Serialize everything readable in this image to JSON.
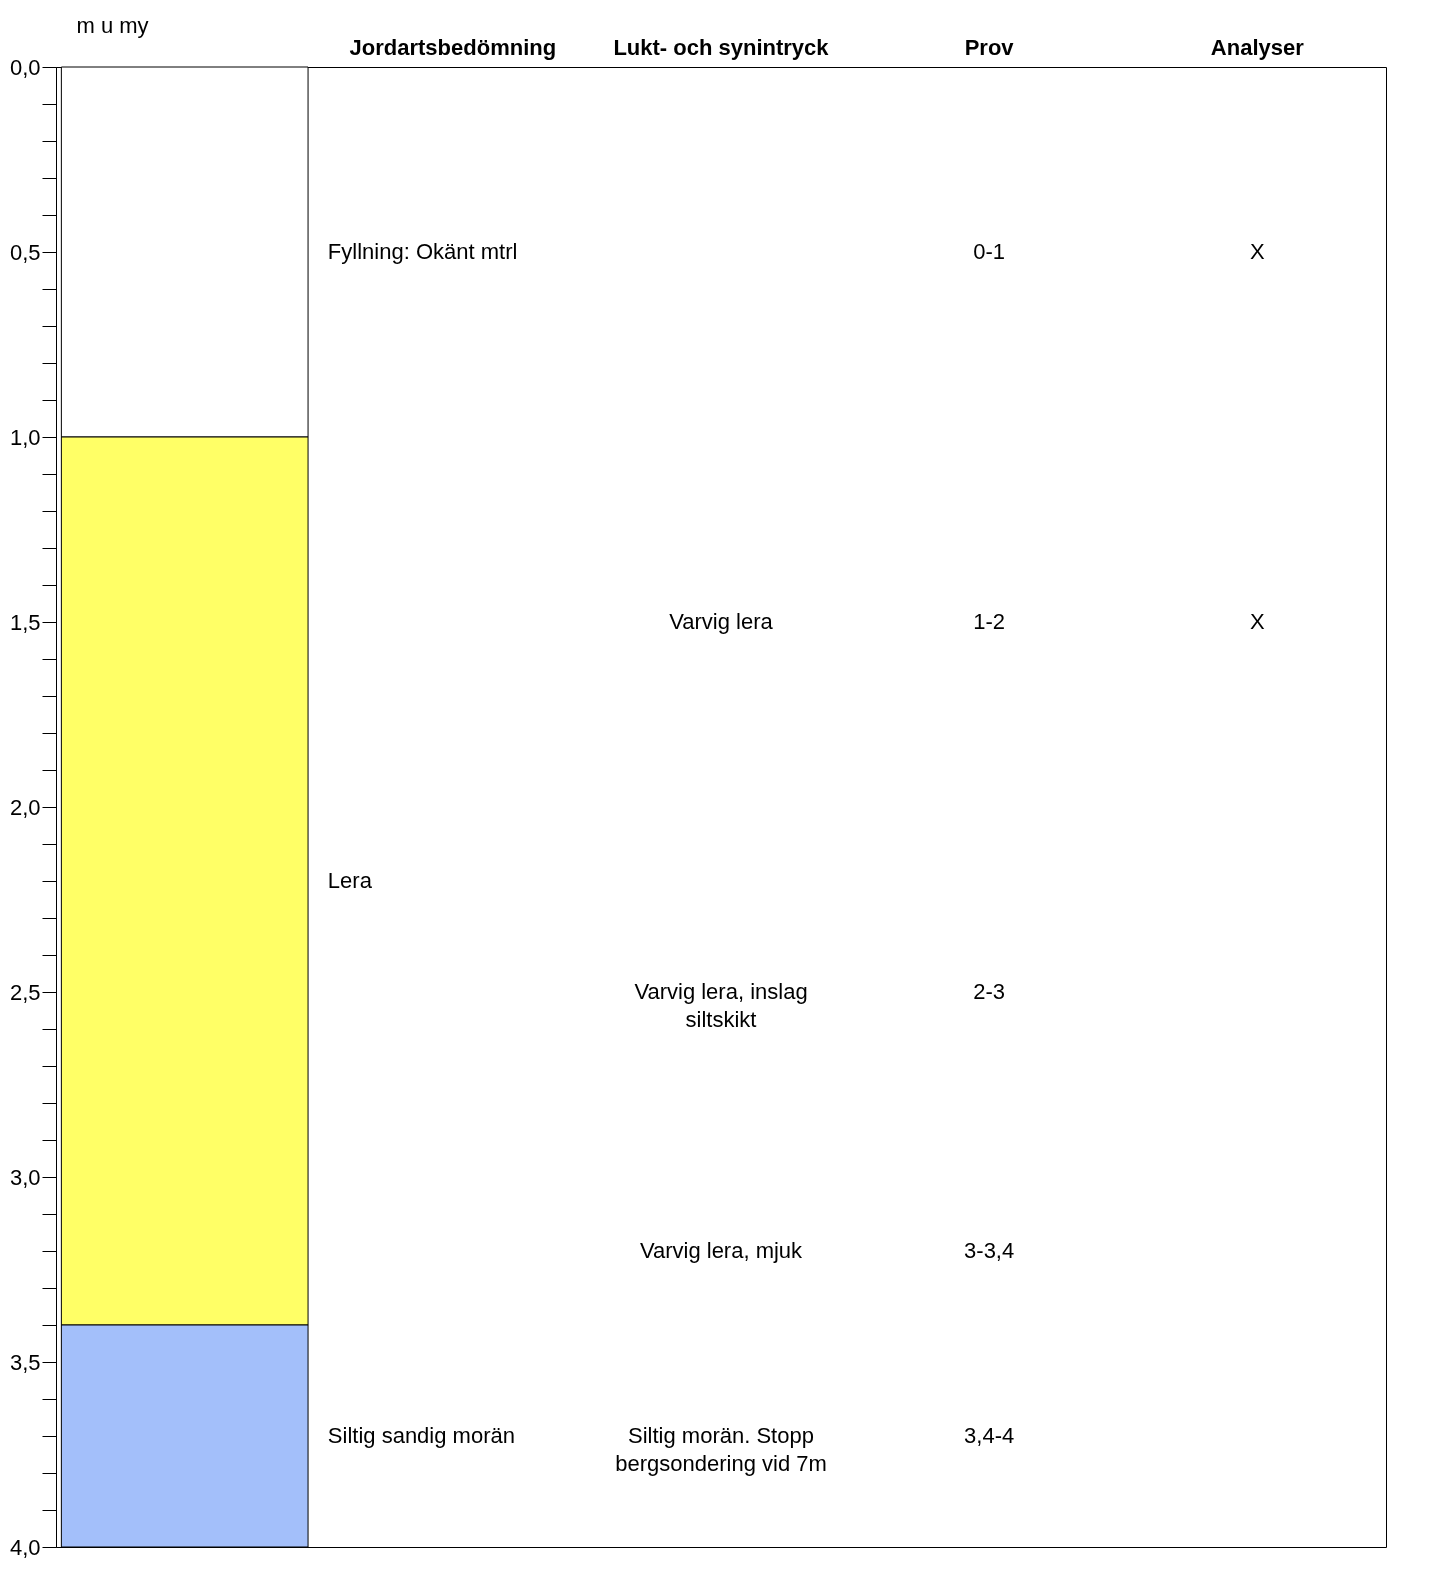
{
  "chart_data": {
    "type": "bar",
    "stacked": true,
    "ylabel": "m u my",
    "categories": [
      null,
      "Jordartsbedömning",
      "Lukt- och synintryck",
      "Prov",
      "Analyser"
    ],
    "series": [
      {
        "color": "#ffffff",
        "values": [
          1.0,
          null,
          null,
          null,
          null
        ]
      },
      {
        "color": "#ffff66",
        "values": [
          2.4,
          null,
          null,
          null,
          null
        ]
      },
      {
        "color": "#a3bffa",
        "values": [
          0.6,
          null,
          null,
          null,
          null
        ]
      }
    ],
    "ylim": [
      4.0,
      0
    ],
    "yticks": [
      {
        "value": 0,
        "label": "0,0"
      },
      {
        "value": 0.1,
        "label": null
      },
      {
        "value": 0.2,
        "label": null
      },
      {
        "value": 0.3,
        "label": null
      },
      {
        "value": 0.4,
        "label": null
      },
      {
        "value": 0.5,
        "label": "0,5"
      },
      {
        "value": 0.6,
        "label": null
      },
      {
        "value": 0.7,
        "label": null
      },
      {
        "value": 0.8,
        "label": null
      },
      {
        "value": 0.9,
        "label": null
      },
      {
        "value": 1.0,
        "label": "1,0"
      },
      {
        "value": 1.1,
        "label": null
      },
      {
        "value": 1.2,
        "label": null
      },
      {
        "value": 1.3,
        "label": null
      },
      {
        "value": 1.4,
        "label": null
      },
      {
        "value": 1.5,
        "label": "1,5"
      },
      {
        "value": 1.6,
        "label": null
      },
      {
        "value": 1.7,
        "label": null
      },
      {
        "value": 1.8,
        "label": null
      },
      {
        "value": 1.9,
        "label": null
      },
      {
        "value": 2.0,
        "label": "2,0"
      },
      {
        "value": 2.1,
        "label": null
      },
      {
        "value": 2.2,
        "label": null
      },
      {
        "value": 2.3,
        "label": null
      },
      {
        "value": 2.4,
        "label": null
      },
      {
        "value": 2.5,
        "label": "2,5"
      },
      {
        "value": 2.6,
        "label": null
      },
      {
        "value": 2.7,
        "label": null
      },
      {
        "value": 2.8,
        "label": null
      },
      {
        "value": 2.9,
        "label": null
      },
      {
        "value": 3.0,
        "label": "3,0"
      },
      {
        "value": 3.1,
        "label": null
      },
      {
        "value": 3.2,
        "label": null
      },
      {
        "value": 3.3,
        "label": null
      },
      {
        "value": 3.4,
        "label": null
      },
      {
        "value": 3.5,
        "label": "3,5"
      },
      {
        "value": 3.6,
        "label": null
      },
      {
        "value": 3.7,
        "label": null
      },
      {
        "value": 3.8,
        "label": null
      },
      {
        "value": 3.9,
        "label": null
      },
      {
        "value": 4.0,
        "label": "4,0"
      }
    ],
    "annotations": [
      "Fyllning:  Okänt mtrl",
      "Lera",
      "Siltig sandig morän",
      "Varvig lera",
      "Varvig lera, inslag\nsiltskikt",
      "Varvig lera, mjuk",
      "Siltig morän. Stopp\nbergsondering vid 7m",
      "0-1",
      "1-2",
      "2-3",
      "3-3,4",
      "3,4-4",
      "X",
      "X"
    ],
    "grid": false,
    "legend": false
  }
}
